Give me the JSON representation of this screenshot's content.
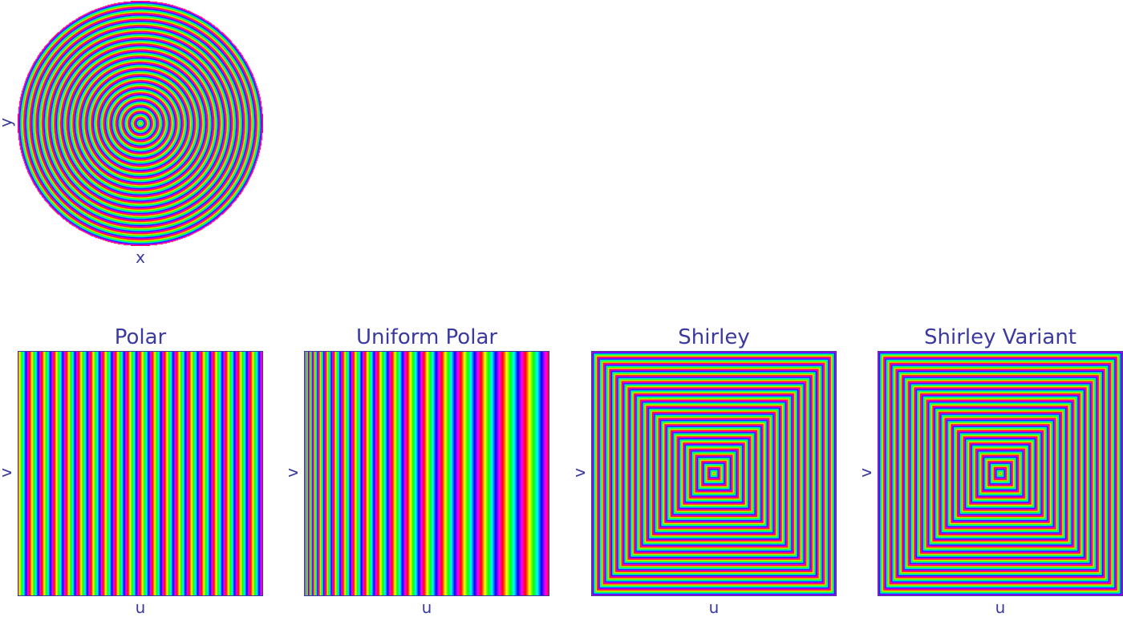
{
  "disk": {
    "xlabel": "x",
    "ylabel": "y",
    "title": ""
  },
  "panels": [
    {
      "title": "Polar",
      "xlabel": "u",
      "ylabel": "v",
      "mapping": "polar"
    },
    {
      "title": "Uniform Polar",
      "xlabel": "u",
      "ylabel": "v",
      "mapping": "uniform-polar"
    },
    {
      "title": "Shirley",
      "xlabel": "u",
      "ylabel": "v",
      "mapping": "shirley"
    },
    {
      "title": "Shirley Variant",
      "xlabel": "u",
      "ylabel": "v",
      "mapping": "shirley-variant"
    }
  ],
  "colormap": "hsv",
  "ring_count": 20,
  "colors": {
    "text": "#3a3aa0",
    "background": "#ffffff"
  }
}
